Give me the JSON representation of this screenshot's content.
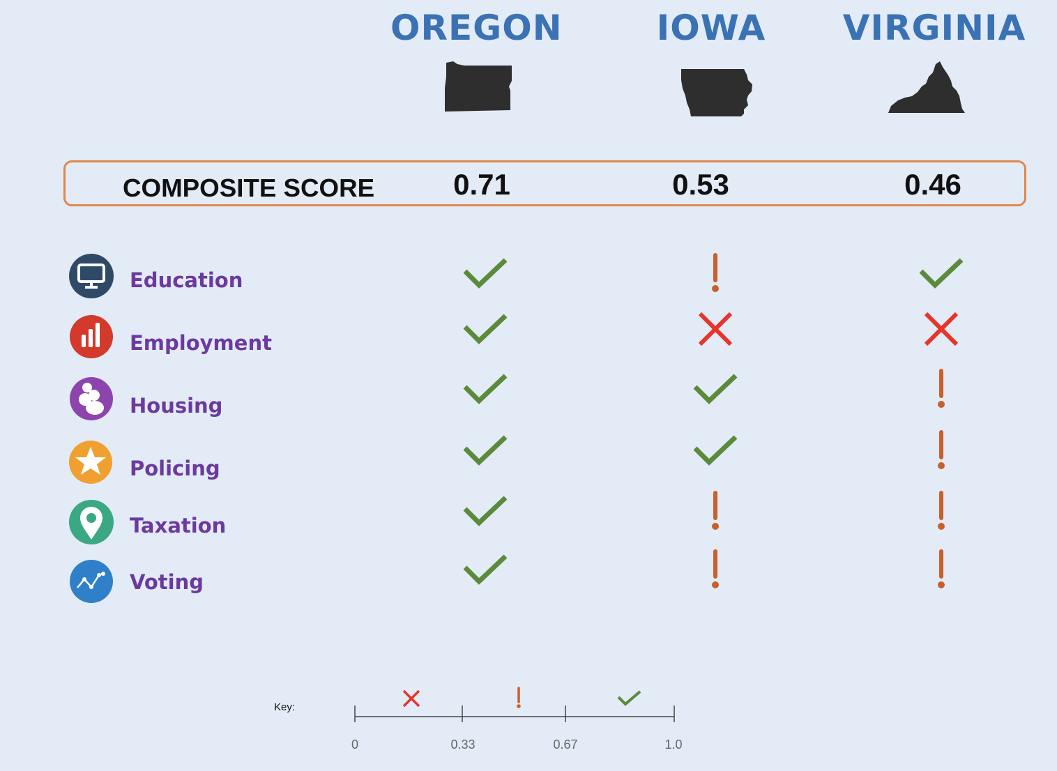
{
  "states": [
    {
      "name": "OREGON",
      "score": "0.71",
      "map_icon": "oregon-silhouette",
      "ratings": [
        "check",
        "check",
        "check",
        "check",
        "check",
        "check"
      ]
    },
    {
      "name": "IOWA",
      "score": "0.53",
      "map_icon": "iowa-silhouette",
      "ratings": [
        "warning",
        "cross",
        "check",
        "check",
        "warning",
        "warning"
      ]
    },
    {
      "name": "VIRGINIA",
      "score": "0.46",
      "map_icon": "virginia-silhouette",
      "ratings": [
        "check",
        "cross",
        "warning",
        "warning",
        "warning",
        "warning"
      ]
    }
  ],
  "composite": {
    "label": "COMPOSITE SCORE"
  },
  "categories": [
    {
      "label": "Education",
      "icon": "monitor-icon",
      "color": "#2f4a66"
    },
    {
      "label": "Employment",
      "icon": "bar-chart-icon",
      "color": "#d33a2c"
    },
    {
      "label": "Housing",
      "icon": "people-icon",
      "color": "#8e44ad"
    },
    {
      "label": "Policing",
      "icon": "star-icon",
      "color": "#f0a030"
    },
    {
      "label": "Taxation",
      "icon": "map-pin-icon",
      "color": "#3aa882"
    },
    {
      "label": "Voting",
      "icon": "line-chart-icon",
      "color": "#2f80c8"
    }
  ],
  "key": {
    "label": "Key:",
    "ticks": [
      "0",
      "0.33",
      "0.67",
      "1.0"
    ],
    "ranges": [
      {
        "symbol": "cross",
        "from": 0,
        "to": 0.33
      },
      {
        "symbol": "warning",
        "from": 0.33,
        "to": 0.67
      },
      {
        "symbol": "check",
        "from": 0.67,
        "to": 1.0
      }
    ]
  },
  "colors": {
    "background": "#e2ebf6",
    "state_title": "#3a72b4",
    "category_label": "#6c3a9f",
    "check": "#5a8a3a",
    "cross": "#e8342a",
    "warning": "#c8602c",
    "score_border": "#e0874b"
  }
}
